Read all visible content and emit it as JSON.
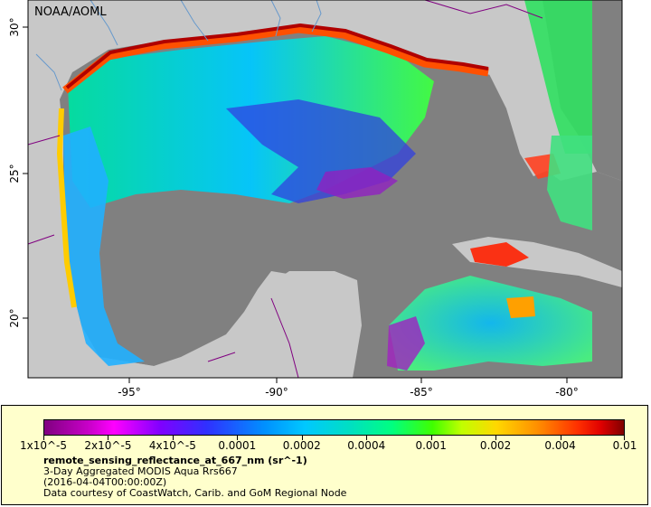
{
  "map": {
    "credit": "NOAA/AOML",
    "lon_ticks": [
      "-95°",
      "-90°",
      "-85°",
      "-80°"
    ],
    "lat_ticks": [
      "30°",
      "25°",
      "20°"
    ],
    "colors": {
      "land": "#c8c8c8",
      "no_data": "#808080",
      "rivers": "#6699cc",
      "borders": "#800080"
    }
  },
  "colorbar": {
    "labels": [
      "1x10^-5",
      "2x10^-5",
      "4x10^-5",
      "0.0001",
      "0.0002",
      "0.0004",
      "0.001",
      "0.002",
      "0.004",
      "0.01"
    ]
  },
  "legend": {
    "variable": "remote_sensing_reflectance_at_667_nm (sr^-1)",
    "product": "3-Day Aggregated MODIS Aqua Rrs667",
    "time": "(2016-04-04T00:00:00Z)",
    "courtesy": "Data courtesy of CoastWatch, Carib. and GoM Regional Node"
  }
}
